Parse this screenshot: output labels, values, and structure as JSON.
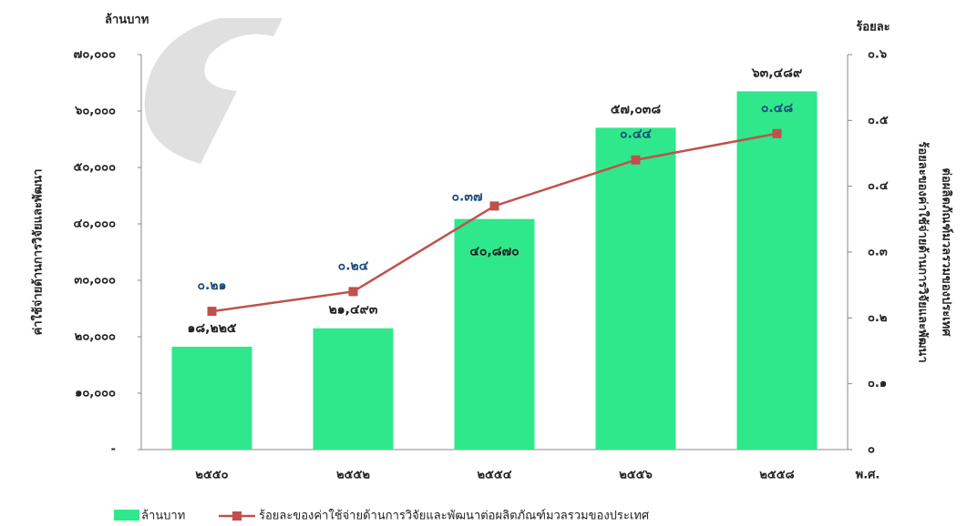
{
  "chart_data": {
    "type": "bar-line",
    "y_unit": "ล้านบาท",
    "y2_unit": "ร้อยละ",
    "x_unit": "พ.ศ.",
    "y_title": "ค่าใช้จ่ายด้านการวิจัยและพัฒนา",
    "y2_title": [
      "ร้อยละของค่าใช้จ่ายด้านการวิจัยและพัฒนา",
      "ต่อผลิตภัณฑ์มวลรวมของประเทศ"
    ],
    "categories": [
      "๒๕๕๐",
      "๒๕๕๒",
      "๒๕๕๔",
      "๒๕๕๖",
      "๒๕๕๘"
    ],
    "series": [
      {
        "name": "ล้านบาท",
        "type": "bar",
        "color": "#2ee88b",
        "values": [
          18225,
          21493,
          40870,
          57038,
          63489
        ],
        "value_labels": [
          "๑๘,๒๒๕",
          "๒๑,๔๙๓",
          "๔๐,๘๗๐",
          "๕๗,๐๓๘",
          "๖๓,๔๘๙"
        ]
      },
      {
        "name": "ร้อยละของค่าใช้จ่ายด้านการวิจัยและพัฒนาต่อผลิตภัณฑ์มวลรวมของประเทศ",
        "type": "line",
        "axis": "y2",
        "color": "#c0504d",
        "values": [
          0.21,
          0.24,
          0.37,
          0.44,
          0.48
        ],
        "value_labels": [
          "๐.๒๑",
          "๐.๒๔",
          "๐.๓๗",
          "๐.๔๔",
          "๐.๔๘"
        ]
      }
    ],
    "ylim": [
      0,
      70000
    ],
    "yticks": [
      {
        "value": 0,
        "label": "-"
      },
      {
        "value": 10000,
        "label": "๑๐,๐๐๐"
      },
      {
        "value": 20000,
        "label": "๒๐,๐๐๐"
      },
      {
        "value": 30000,
        "label": "๓๐,๐๐๐"
      },
      {
        "value": 40000,
        "label": "๔๐,๐๐๐"
      },
      {
        "value": 50000,
        "label": "๕๐,๐๐๐"
      },
      {
        "value": 60000,
        "label": "๖๐,๐๐๐"
      },
      {
        "value": 70000,
        "label": "๗๐,๐๐๐"
      }
    ],
    "y2lim": [
      0,
      0.6
    ],
    "y2ticks": [
      {
        "value": 0,
        "label": "๐"
      },
      {
        "value": 0.1,
        "label": "๐.๑"
      },
      {
        "value": 0.2,
        "label": "๐.๒"
      },
      {
        "value": 0.3,
        "label": "๐.๓"
      },
      {
        "value": 0.4,
        "label": "๐.๔"
      },
      {
        "value": 0.5,
        "label": "๐.๕"
      },
      {
        "value": 0.6,
        "label": "๐.๖"
      }
    ],
    "grid": false
  }
}
